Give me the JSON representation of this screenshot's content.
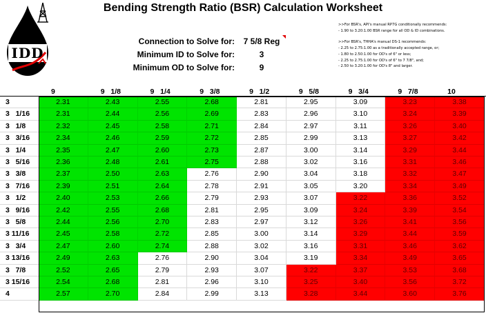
{
  "title": "Bending Strength Ratio (BSR) Calculation Worksheet",
  "logo": {
    "text": "IDD"
  },
  "params": [
    {
      "label": "Connection to Solve for:",
      "value": "7 5/8 Reg"
    },
    {
      "label": "Minimum ID to Solve for:",
      "value": "3"
    },
    {
      "label": "Minimum OD to Solve for:",
      "value": "9"
    }
  ],
  "notes": [
    ">>For BSR's, API's manual RP7G conditionally recommends:",
    "  - 1.90 to 3.20:1.00 BSR range for all OD & ID combinations.",
    "",
    ">>For BSR's, THHA's manual DS-1 recommends:",
    "  - 2.25 to 2.75:1.00 as a traditionally accepted range, or;",
    "  - 1.80 to 2.50:1.00 for OD's of 6\" or less;",
    "  - 2.25 to 2.75:1.00 for OD's of 6\" to 7 7/8\", and;",
    "  - 2.50 to 3.20:1.00 for OD's 8\" and larger."
  ],
  "od_headers": [
    "9",
    "9   1/8",
    "9   1/4",
    "9   3/8",
    "9   1/2",
    "9   5/8",
    "9   3/4",
    "9   7/8",
    "10"
  ],
  "colors": {
    "green": "#00e400",
    "red": "#ff0000",
    "white": "#ffffff"
  },
  "rows": [
    {
      "id": "3",
      "cells": [
        [
          "2.31",
          "g"
        ],
        [
          "2.43",
          "g"
        ],
        [
          "2.55",
          "g"
        ],
        [
          "2.68",
          "g"
        ],
        [
          "2.81",
          "w"
        ],
        [
          "2.95",
          "w"
        ],
        [
          "3.09",
          "w"
        ],
        [
          "3.23",
          "r"
        ],
        [
          "3.38",
          "r"
        ]
      ]
    },
    {
      "id": "3   1/16",
      "cells": [
        [
          "2.31",
          "g"
        ],
        [
          "2.44",
          "g"
        ],
        [
          "2.56",
          "g"
        ],
        [
          "2.69",
          "g"
        ],
        [
          "2.83",
          "w"
        ],
        [
          "2.96",
          "w"
        ],
        [
          "3.10",
          "w"
        ],
        [
          "3.24",
          "r"
        ],
        [
          "3.39",
          "r"
        ]
      ]
    },
    {
      "id": "3   1/8",
      "cells": [
        [
          "2.32",
          "g"
        ],
        [
          "2.45",
          "g"
        ],
        [
          "2.58",
          "g"
        ],
        [
          "2.71",
          "g"
        ],
        [
          "2.84",
          "w"
        ],
        [
          "2.97",
          "w"
        ],
        [
          "3.11",
          "w"
        ],
        [
          "3.26",
          "r"
        ],
        [
          "3.40",
          "r"
        ]
      ]
    },
    {
      "id": "3   3/16",
      "cells": [
        [
          "2.34",
          "g"
        ],
        [
          "2.46",
          "g"
        ],
        [
          "2.59",
          "g"
        ],
        [
          "2.72",
          "g"
        ],
        [
          "2.85",
          "w"
        ],
        [
          "2.99",
          "w"
        ],
        [
          "3.13",
          "w"
        ],
        [
          "3.27",
          "r"
        ],
        [
          "3.42",
          "r"
        ]
      ]
    },
    {
      "id": "3   1/4",
      "cells": [
        [
          "2.35",
          "g"
        ],
        [
          "2.47",
          "g"
        ],
        [
          "2.60",
          "g"
        ],
        [
          "2.73",
          "g"
        ],
        [
          "2.87",
          "w"
        ],
        [
          "3.00",
          "w"
        ],
        [
          "3.14",
          "w"
        ],
        [
          "3.29",
          "r"
        ],
        [
          "3.44",
          "r"
        ]
      ]
    },
    {
      "id": "3   5/16",
      "cells": [
        [
          "2.36",
          "g"
        ],
        [
          "2.48",
          "g"
        ],
        [
          "2.61",
          "g"
        ],
        [
          "2.75",
          "g"
        ],
        [
          "2.88",
          "w"
        ],
        [
          "3.02",
          "w"
        ],
        [
          "3.16",
          "w"
        ],
        [
          "3.31",
          "r"
        ],
        [
          "3.46",
          "r"
        ]
      ]
    },
    {
      "id": "3   3/8",
      "cells": [
        [
          "2.37",
          "g"
        ],
        [
          "2.50",
          "g"
        ],
        [
          "2.63",
          "g"
        ],
        [
          "2.76",
          "w"
        ],
        [
          "2.90",
          "w"
        ],
        [
          "3.04",
          "w"
        ],
        [
          "3.18",
          "w"
        ],
        [
          "3.32",
          "r"
        ],
        [
          "3.47",
          "r"
        ]
      ]
    },
    {
      "id": "3   7/16",
      "cells": [
        [
          "2.39",
          "g"
        ],
        [
          "2.51",
          "g"
        ],
        [
          "2.64",
          "g"
        ],
        [
          "2.78",
          "w"
        ],
        [
          "2.91",
          "w"
        ],
        [
          "3.05",
          "w"
        ],
        [
          "3.20",
          "w"
        ],
        [
          "3.34",
          "r"
        ],
        [
          "3.49",
          "r"
        ]
      ]
    },
    {
      "id": "3   1/2",
      "cells": [
        [
          "2.40",
          "g"
        ],
        [
          "2.53",
          "g"
        ],
        [
          "2.66",
          "g"
        ],
        [
          "2.79",
          "w"
        ],
        [
          "2.93",
          "w"
        ],
        [
          "3.07",
          "w"
        ],
        [
          "3.22",
          "r"
        ],
        [
          "3.36",
          "r"
        ],
        [
          "3.52",
          "r"
        ]
      ]
    },
    {
      "id": "3   9/16",
      "cells": [
        [
          "2.42",
          "g"
        ],
        [
          "2.55",
          "g"
        ],
        [
          "2.68",
          "g"
        ],
        [
          "2.81",
          "w"
        ],
        [
          "2.95",
          "w"
        ],
        [
          "3.09",
          "w"
        ],
        [
          "3.24",
          "r"
        ],
        [
          "3.39",
          "r"
        ],
        [
          "3.54",
          "r"
        ]
      ]
    },
    {
      "id": "3   5/8",
      "cells": [
        [
          "2.44",
          "g"
        ],
        [
          "2.56",
          "g"
        ],
        [
          "2.70",
          "g"
        ],
        [
          "2.83",
          "w"
        ],
        [
          "2.97",
          "w"
        ],
        [
          "3.12",
          "w"
        ],
        [
          "3.26",
          "r"
        ],
        [
          "3.41",
          "r"
        ],
        [
          "3.56",
          "r"
        ]
      ]
    },
    {
      "id": "3 11/16",
      "cells": [
        [
          "2.45",
          "g"
        ],
        [
          "2.58",
          "g"
        ],
        [
          "2.72",
          "g"
        ],
        [
          "2.85",
          "w"
        ],
        [
          "3.00",
          "w"
        ],
        [
          "3.14",
          "w"
        ],
        [
          "3.29",
          "r"
        ],
        [
          "3.44",
          "r"
        ],
        [
          "3.59",
          "r"
        ]
      ]
    },
    {
      "id": "3   3/4",
      "cells": [
        [
          "2.47",
          "g"
        ],
        [
          "2.60",
          "g"
        ],
        [
          "2.74",
          "g"
        ],
        [
          "2.88",
          "w"
        ],
        [
          "3.02",
          "w"
        ],
        [
          "3.16",
          "w"
        ],
        [
          "3.31",
          "r"
        ],
        [
          "3.46",
          "r"
        ],
        [
          "3.62",
          "r"
        ]
      ]
    },
    {
      "id": "3 13/16",
      "cells": [
        [
          "2.49",
          "g"
        ],
        [
          "2.63",
          "g"
        ],
        [
          "2.76",
          "w"
        ],
        [
          "2.90",
          "w"
        ],
        [
          "3.04",
          "w"
        ],
        [
          "3.19",
          "w"
        ],
        [
          "3.34",
          "r"
        ],
        [
          "3.49",
          "r"
        ],
        [
          "3.65",
          "r"
        ]
      ]
    },
    {
      "id": "3   7/8",
      "cells": [
        [
          "2.52",
          "g"
        ],
        [
          "2.65",
          "g"
        ],
        [
          "2.79",
          "w"
        ],
        [
          "2.93",
          "w"
        ],
        [
          "3.07",
          "w"
        ],
        [
          "3.22",
          "r"
        ],
        [
          "3.37",
          "r"
        ],
        [
          "3.53",
          "r"
        ],
        [
          "3.68",
          "r"
        ]
      ]
    },
    {
      "id": "3 15/16",
      "cells": [
        [
          "2.54",
          "g"
        ],
        [
          "2.68",
          "g"
        ],
        [
          "2.81",
          "w"
        ],
        [
          "2.96",
          "w"
        ],
        [
          "3.10",
          "w"
        ],
        [
          "3.25",
          "r"
        ],
        [
          "3.40",
          "r"
        ],
        [
          "3.56",
          "r"
        ],
        [
          "3.72",
          "r"
        ]
      ]
    },
    {
      "id": "4",
      "cells": [
        [
          "2.57",
          "g"
        ],
        [
          "2.70",
          "g"
        ],
        [
          "2.84",
          "w"
        ],
        [
          "2.99",
          "w"
        ],
        [
          "3.13",
          "w"
        ],
        [
          "3.28",
          "r"
        ],
        [
          "3.44",
          "r"
        ],
        [
          "3.60",
          "r"
        ],
        [
          "3.76",
          "r"
        ]
      ]
    }
  ]
}
